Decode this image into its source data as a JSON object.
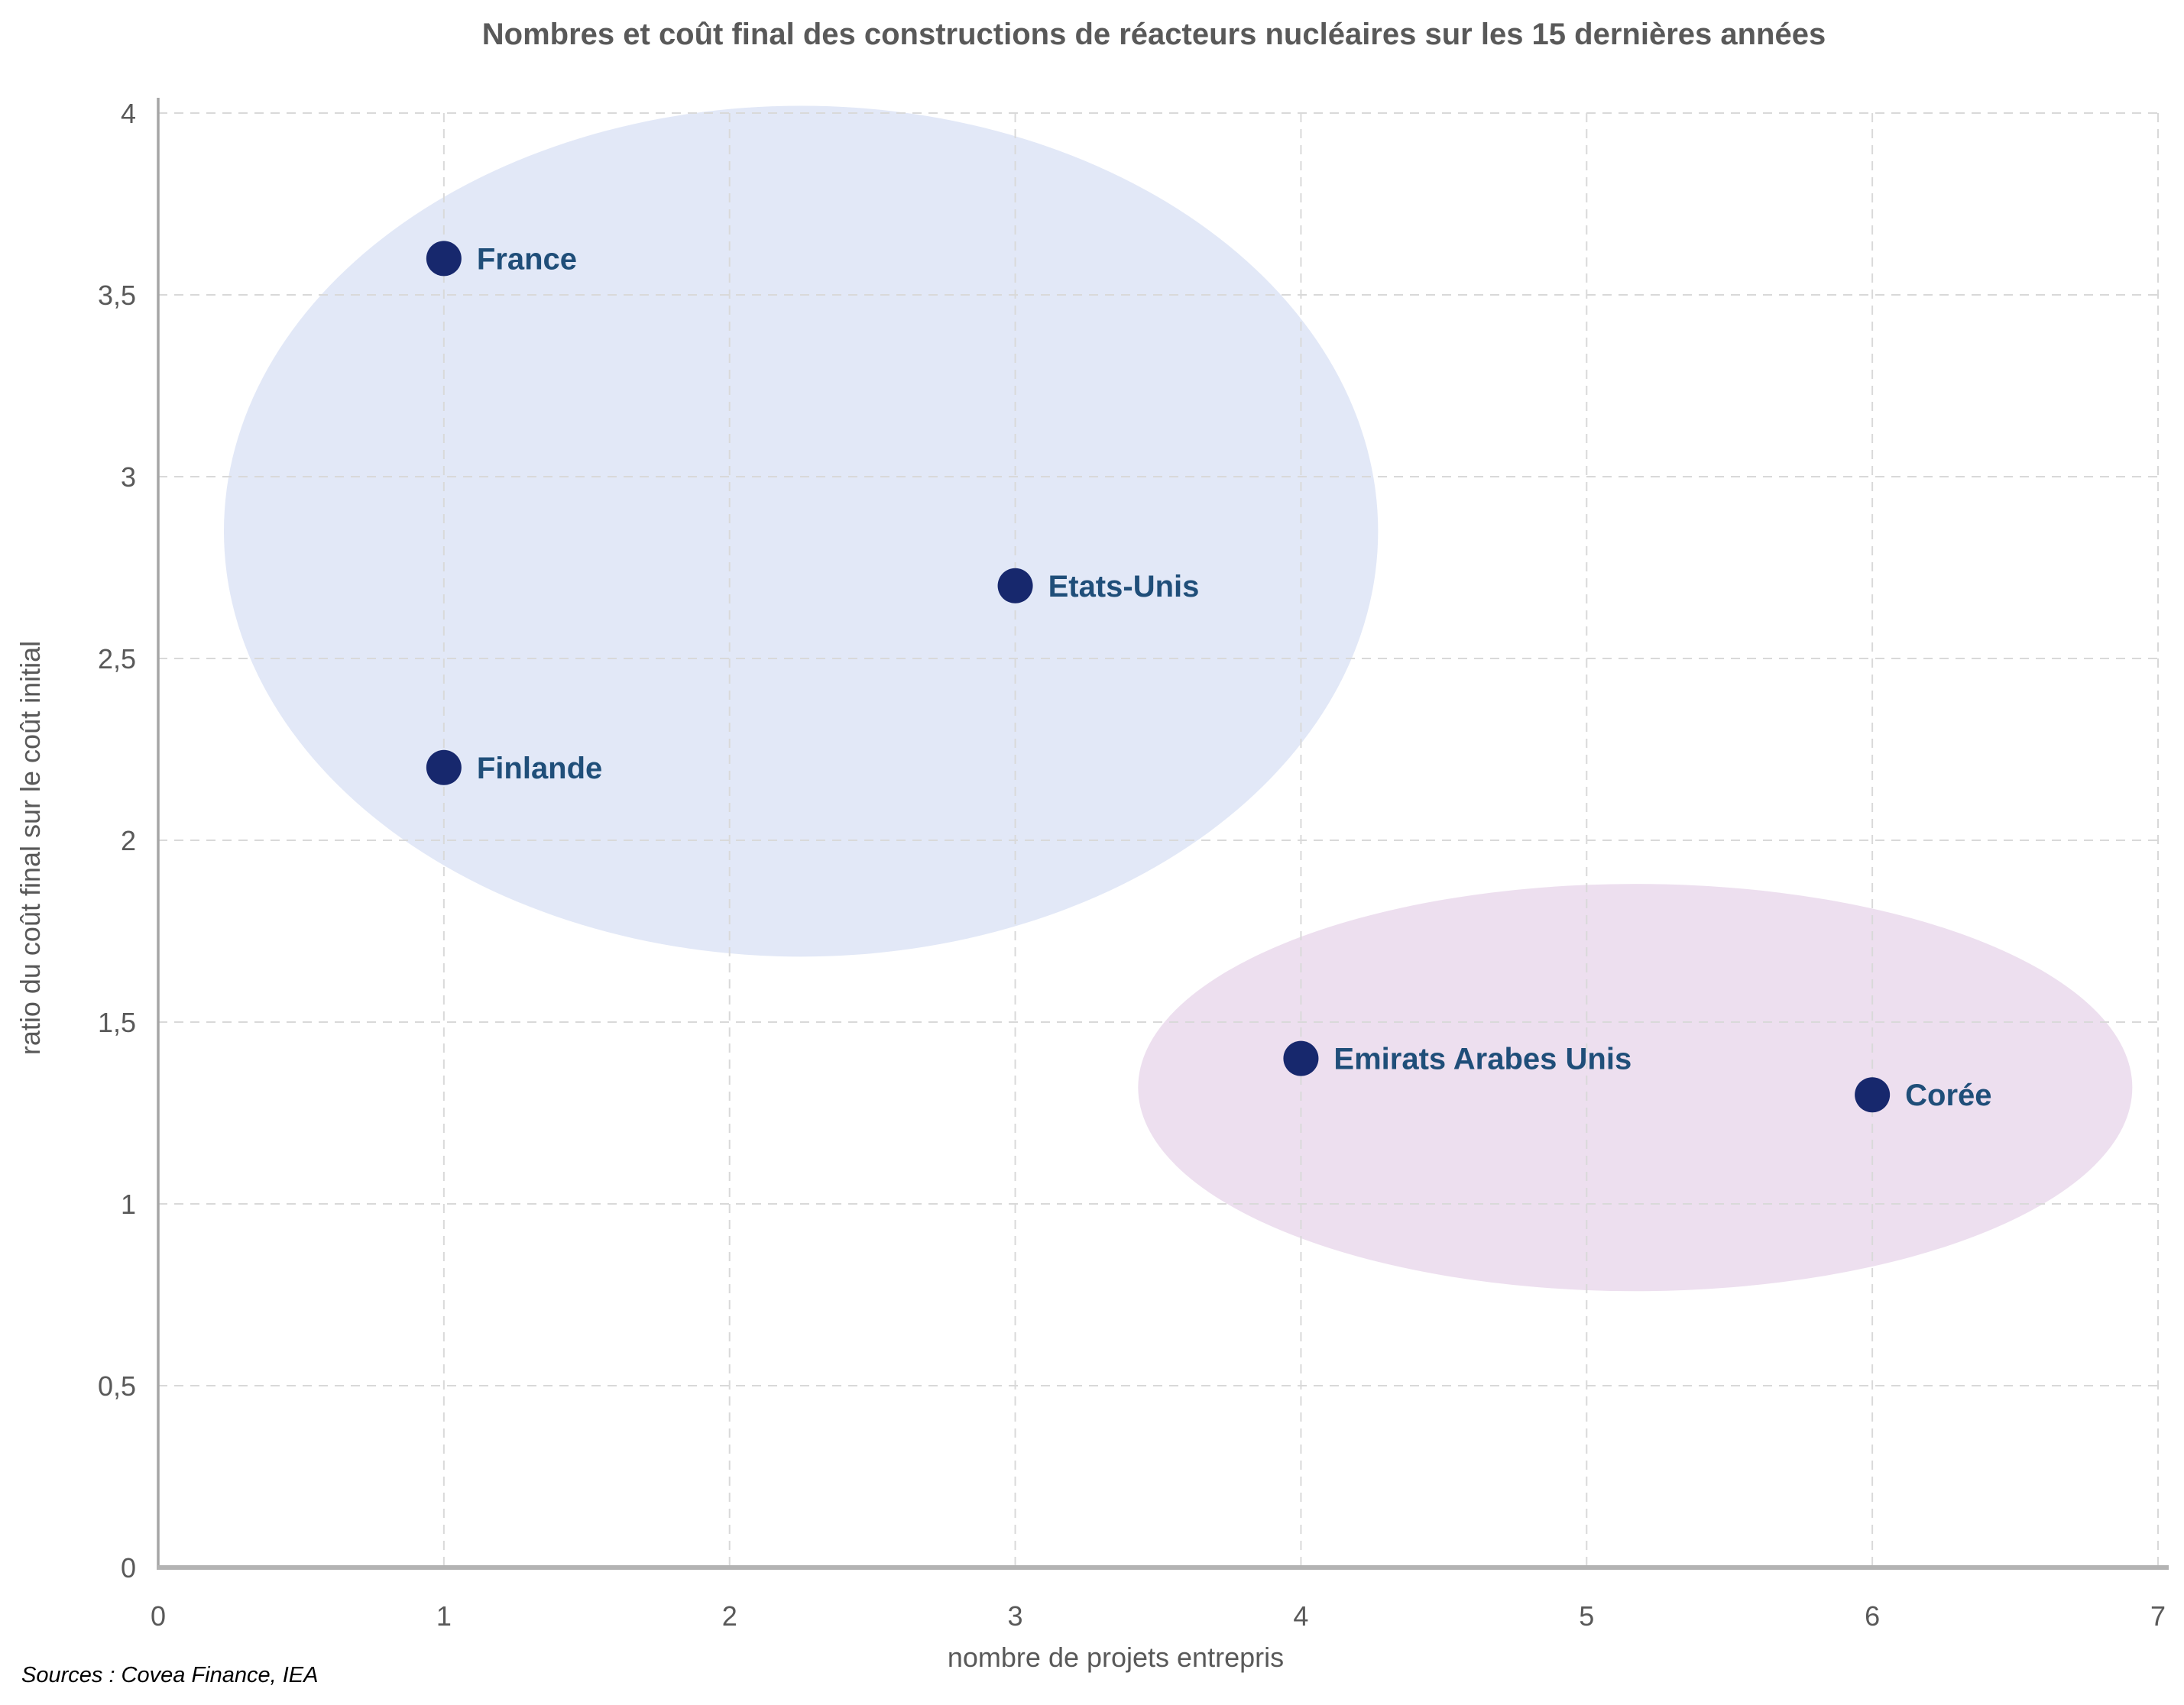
{
  "page": {
    "source_note": "Sources : Covea Finance, IEA"
  },
  "chart_data": {
    "type": "scatter",
    "title": "Nombres et coût final des constructions de réacteurs nucléaires sur les 15 dernières années",
    "xlabel": "nombre de projets entrepris",
    "ylabel": "ratio du coût final sur le coût initial",
    "xlim": [
      0,
      7
    ],
    "ylim": [
      0,
      4
    ],
    "grid": true,
    "legend": false,
    "x_ticks": [
      {
        "value": 0,
        "label": "0"
      },
      {
        "value": 1,
        "label": "1"
      },
      {
        "value": 2,
        "label": "2"
      },
      {
        "value": 3,
        "label": "3"
      },
      {
        "value": 4,
        "label": "4"
      },
      {
        "value": 5,
        "label": "5"
      },
      {
        "value": 6,
        "label": "6"
      },
      {
        "value": 7,
        "label": "7"
      }
    ],
    "y_ticks": [
      {
        "value": 0,
        "label": "0"
      },
      {
        "value": 0.5,
        "label": "0,5"
      },
      {
        "value": 1,
        "label": "1"
      },
      {
        "value": 1.5,
        "label": "1,5"
      },
      {
        "value": 2,
        "label": "2"
      },
      {
        "value": 2.5,
        "label": "2,5"
      },
      {
        "value": 3,
        "label": "3"
      },
      {
        "value": 3.5,
        "label": "3,5"
      },
      {
        "value": 4,
        "label": "4"
      }
    ],
    "points": [
      {
        "label": "France",
        "x": 1,
        "y": 3.6
      },
      {
        "label": "Etats-Unis",
        "x": 3,
        "y": 2.7
      },
      {
        "label": "Finlande",
        "x": 1,
        "y": 2.2
      },
      {
        "label": "Emirats Arabes Unis",
        "x": 4,
        "y": 1.4
      },
      {
        "label": "Corée",
        "x": 6,
        "y": 1.3
      }
    ],
    "cluster_ellipses": [
      {
        "name": "cluster-occident",
        "cx": 2.25,
        "cy": 2.85,
        "rx": 2.02,
        "ry": 1.17,
        "fill": "#E2E8F7"
      },
      {
        "name": "cluster-coree-emirats",
        "cx": 5.17,
        "cy": 1.32,
        "rx": 1.74,
        "ry": 0.56,
        "fill": "#EDDFEF"
      }
    ],
    "styles": {
      "point_color": "#17286D",
      "point_radius": 23,
      "point_label_color": "#1F4E79",
      "grid_color": "#D9D9D9",
      "x_axis_color": "#B3B3B3",
      "y_axis_color": "#A6A6A6",
      "text_color": "#595959",
      "source_color": "#000000"
    }
  }
}
